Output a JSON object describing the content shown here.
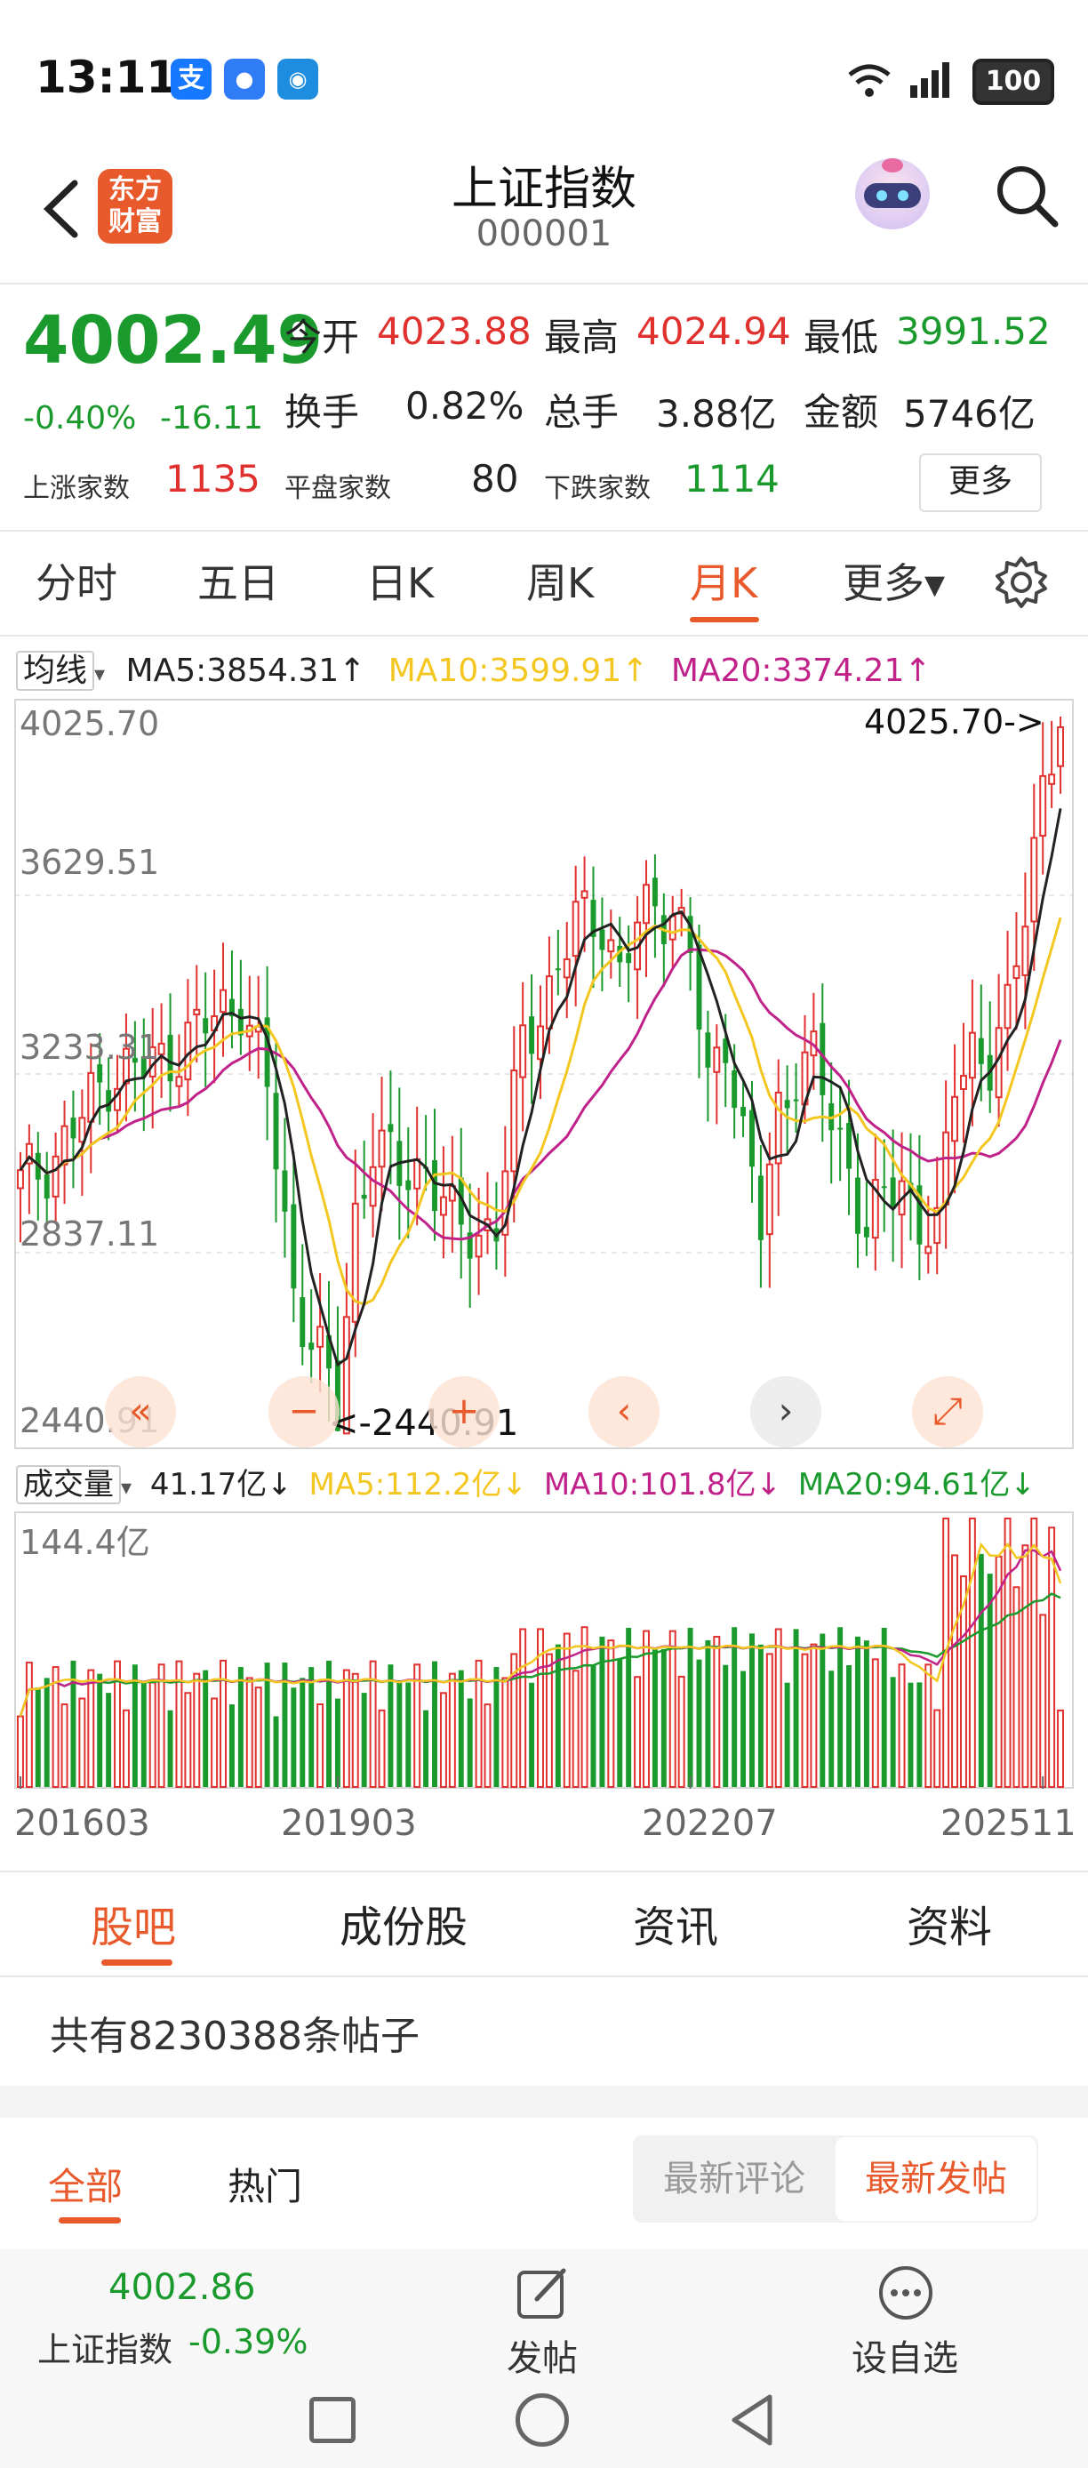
{
  "status_bar": {
    "time": "13:11",
    "battery": "100",
    "apps": [
      "支",
      "💬",
      "🐧"
    ]
  },
  "header": {
    "title": "上证指数",
    "code": "000001",
    "logo_lines": [
      "东方",
      "财富"
    ],
    "icons": [
      "back-icon",
      "robot-avatar-icon",
      "search-icon"
    ]
  },
  "quote": {
    "price": "4002.49",
    "change_pct": "-0.40%",
    "change": "-16.11",
    "open_label": "今开",
    "open": "4023.88",
    "high_label": "最高",
    "high": "4024.94",
    "low_label": "最低",
    "low": "3991.52",
    "turnover_label": "换手",
    "turnover": "0.82%",
    "volume_label": "总手",
    "volume": "3.88亿",
    "amount_label": "金额",
    "amount": "5746亿",
    "up_label": "上涨家数",
    "up": "1135",
    "flat_label": "平盘家数",
    "flat": "80",
    "down_label": "下跌家数",
    "down": "1114",
    "more": "更多"
  },
  "period_tabs": [
    "分时",
    "五日",
    "日K",
    "周K",
    "月K",
    "更多▾"
  ],
  "active_period": "月K",
  "ma_row": {
    "selector": "均线",
    "ma5": "MA5:3854.31↑",
    "ma10": "MA10:3599.91↑",
    "ma20": "MA20:3374.21↑"
  },
  "vol_row": {
    "selector": "成交量",
    "current": "41.17亿↓",
    "ma5": "MA5:112.2亿↓",
    "ma10": "MA10:101.8亿↓",
    "ma20": "MA20:94.61亿↓"
  },
  "colors": {
    "up": "#e0312e",
    "down": "#1a9a2c",
    "ma5": "#222222",
    "ma10": "#f3c620",
    "ma20": "#c0228a",
    "accent": "#e8592b",
    "vol_ma20": "#1a9a2c"
  },
  "chart_data": {
    "type": "candlestick",
    "price_ticks": [
      "4025.70",
      "3629.51",
      "3233.31",
      "2837.11",
      "2440.91"
    ],
    "price_range": [
      2440.91,
      4025.7
    ],
    "max_marker": "4025.70->",
    "min_marker": "<-2440.91",
    "x_labels": [
      "201603",
      "201903",
      "202207",
      "202511"
    ],
    "volume_top_label": "144.4亿",
    "volume_range": [
      0,
      144.4
    ],
    "anchors": [
      {
        "i": 0,
        "c": 2990
      },
      {
        "i": 4,
        "c": 3050
      },
      {
        "i": 10,
        "c": 3230
      },
      {
        "i": 16,
        "c": 3260
      },
      {
        "i": 22,
        "c": 3360
      },
      {
        "i": 25,
        "c": 3400
      },
      {
        "i": 28,
        "c": 3200
      },
      {
        "i": 31,
        "c": 2750
      },
      {
        "i": 34,
        "c": 2600
      },
      {
        "i": 36,
        "c": 2480
      },
      {
        "i": 38,
        "c": 2920
      },
      {
        "i": 40,
        "c": 3080
      },
      {
        "i": 43,
        "c": 3010
      },
      {
        "i": 46,
        "c": 3030
      },
      {
        "i": 49,
        "c": 2900
      },
      {
        "i": 52,
        "c": 2880
      },
      {
        "i": 54,
        "c": 2900
      },
      {
        "i": 57,
        "c": 3300
      },
      {
        "i": 60,
        "c": 3420
      },
      {
        "i": 63,
        "c": 3570
      },
      {
        "i": 66,
        "c": 3580
      },
      {
        "i": 68,
        "c": 3450
      },
      {
        "i": 70,
        "c": 3560
      },
      {
        "i": 72,
        "c": 3610
      },
      {
        "i": 74,
        "c": 3600
      },
      {
        "i": 76,
        "c": 3500
      },
      {
        "i": 78,
        "c": 3200
      },
      {
        "i": 80,
        "c": 3330
      },
      {
        "i": 82,
        "c": 3090
      },
      {
        "i": 84,
        "c": 2890
      },
      {
        "i": 86,
        "c": 3150
      },
      {
        "i": 88,
        "c": 3250
      },
      {
        "i": 90,
        "c": 3260
      },
      {
        "i": 92,
        "c": 3130
      },
      {
        "i": 94,
        "c": 3030
      },
      {
        "i": 96,
        "c": 2880
      },
      {
        "i": 98,
        "c": 2960
      },
      {
        "i": 100,
        "c": 2990
      },
      {
        "i": 102,
        "c": 2910
      },
      {
        "i": 104,
        "c": 2870
      },
      {
        "i": 106,
        "c": 3220
      },
      {
        "i": 108,
        "c": 3300
      },
      {
        "i": 110,
        "c": 3250
      },
      {
        "i": 112,
        "c": 3350
      },
      {
        "i": 114,
        "c": 3620
      },
      {
        "i": 116,
        "c": 3880
      },
      {
        "i": 118,
        "c": 4002
      }
    ],
    "bar_count": 119
  },
  "nav_buttons": [
    "«",
    "−",
    "+",
    "‹",
    "›",
    "⤢"
  ],
  "bottom_tabs": [
    "股吧",
    "成份股",
    "资讯",
    "资料"
  ],
  "posts_count": "共有8230388条帖子",
  "filter_tabs": [
    "全部",
    "热门"
  ],
  "sort_options": [
    "最新评论",
    "最新发帖"
  ],
  "footer": {
    "price": "4002.86",
    "name": "上证指数",
    "change": "-0.39%",
    "post": "发帖",
    "watch": "设自选"
  }
}
